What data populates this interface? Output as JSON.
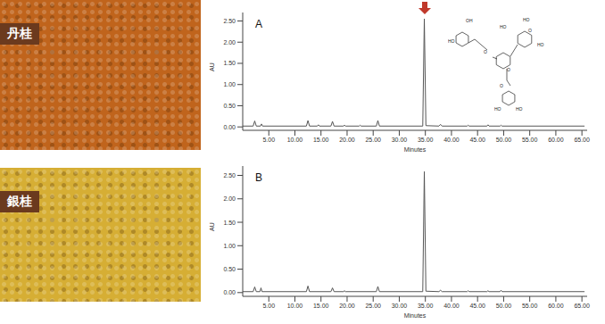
{
  "photos": [
    {
      "label": "丹桂",
      "color": "#c0641c"
    },
    {
      "label": "銀桂",
      "color": "#d6ae34"
    }
  ],
  "structure": {
    "labels": [
      "OH",
      "HO",
      "O",
      "O",
      "HO",
      "HO",
      "HO",
      "O",
      "O",
      "HO",
      "HO"
    ]
  },
  "chart_data": [
    {
      "type": "line",
      "title": "A",
      "x_label": "Minutes",
      "y_label": "AU",
      "grid": false,
      "xlim": [
        0,
        66
      ],
      "ylim": [
        -0.08,
        2.7
      ],
      "xticks": [
        {
          "value": 5,
          "label": "5.00"
        },
        {
          "value": 10,
          "label": "10.00"
        },
        {
          "value": 15,
          "label": "15.00"
        },
        {
          "value": 20,
          "label": "20.00"
        },
        {
          "value": 25,
          "label": "25.00"
        },
        {
          "value": 30,
          "label": "30.00"
        },
        {
          "value": 35,
          "label": "35.00"
        },
        {
          "value": 40,
          "label": "40.00"
        },
        {
          "value": 45,
          "label": "45.00"
        },
        {
          "value": 50,
          "label": "50.00"
        },
        {
          "value": 55,
          "label": "55.00"
        },
        {
          "value": 60,
          "label": "60.00"
        },
        {
          "value": 65,
          "label": "65.00"
        }
      ],
      "yticks": [
        {
          "value": 0,
          "label": "0.00"
        },
        {
          "value": 0.5,
          "label": "0.50"
        },
        {
          "value": 1,
          "label": "1.00"
        },
        {
          "value": 1.5,
          "label": "1.50"
        },
        {
          "value": 2,
          "label": "2.00"
        },
        {
          "value": 2.5,
          "label": "2.50"
        }
      ],
      "x": [
        0,
        2.0,
        2.3,
        2.6,
        3.4,
        3.6,
        3.8,
        12.2,
        12.5,
        12.8,
        14.3,
        14.5,
        14.7,
        16.9,
        17.2,
        17.5,
        19.3,
        19.5,
        19.7,
        22.3,
        22.5,
        22.7,
        25.6,
        25.9,
        26.2,
        34.5,
        34.8,
        35.1,
        37.6,
        37.9,
        38.2,
        43.0,
        43.2,
        43.4,
        46.8,
        47.0,
        47.2,
        49.3,
        49.5,
        49.7,
        65.5
      ],
      "series": [
        {
          "color": "#555555",
          "values": [
            0.02,
            0.02,
            0.14,
            0.02,
            0.02,
            0.07,
            0.02,
            0.02,
            0.15,
            0.02,
            0.02,
            0.05,
            0.02,
            0.02,
            0.13,
            0.02,
            0.02,
            0.04,
            0.02,
            0.02,
            0.04,
            0.02,
            0.02,
            0.15,
            0.02,
            0.02,
            2.55,
            0.03,
            0.02,
            0.06,
            0.02,
            0.02,
            0.04,
            0.02,
            0.02,
            0.05,
            0.02,
            0.02,
            0.04,
            0.02,
            0.02
          ]
        }
      ]
    },
    {
      "type": "line",
      "title": "B",
      "x_label": "Minutes",
      "y_label": "AU",
      "grid": false,
      "xlim": [
        0,
        66
      ],
      "ylim": [
        -0.08,
        2.7
      ],
      "xticks": [
        {
          "value": 5,
          "label": "5.00"
        },
        {
          "value": 10,
          "label": "10.00"
        },
        {
          "value": 15,
          "label": "15.00"
        },
        {
          "value": 20,
          "label": "20.00"
        },
        {
          "value": 25,
          "label": "25.00"
        },
        {
          "value": 30,
          "label": "30.00"
        },
        {
          "value": 35,
          "label": "35.00"
        },
        {
          "value": 40,
          "label": "40.00"
        },
        {
          "value": 45,
          "label": "45.00"
        },
        {
          "value": 50,
          "label": "50.00"
        },
        {
          "value": 55,
          "label": "55.00"
        },
        {
          "value": 60,
          "label": "60.00"
        },
        {
          "value": 65,
          "label": "65.00"
        }
      ],
      "yticks": [
        {
          "value": 0,
          "label": "0.00"
        },
        {
          "value": 0.5,
          "label": "0.50"
        },
        {
          "value": 1,
          "label": "1.00"
        },
        {
          "value": 1.5,
          "label": "1.50"
        },
        {
          "value": 2,
          "label": "2.00"
        },
        {
          "value": 2.5,
          "label": "2.50"
        }
      ],
      "x": [
        0,
        2.0,
        2.3,
        2.6,
        3.3,
        3.5,
        3.7,
        12.2,
        12.5,
        12.8,
        16.9,
        17.2,
        17.5,
        19.3,
        19.5,
        19.7,
        25.6,
        25.9,
        26.2,
        34.5,
        34.8,
        35.1,
        37.6,
        37.9,
        38.2,
        43.0,
        43.2,
        43.4,
        46.8,
        47.0,
        47.2,
        49.3,
        49.5,
        49.7,
        65.5
      ],
      "series": [
        {
          "color": "#555555",
          "values": [
            0.02,
            0.02,
            0.12,
            0.02,
            0.02,
            0.1,
            0.02,
            0.02,
            0.14,
            0.02,
            0.02,
            0.1,
            0.02,
            0.02,
            0.04,
            0.02,
            0.02,
            0.13,
            0.02,
            0.02,
            2.58,
            0.03,
            0.02,
            0.05,
            0.02,
            0.02,
            0.04,
            0.02,
            0.02,
            0.04,
            0.02,
            0.02,
            0.05,
            0.02,
            0.02
          ]
        }
      ]
    }
  ]
}
